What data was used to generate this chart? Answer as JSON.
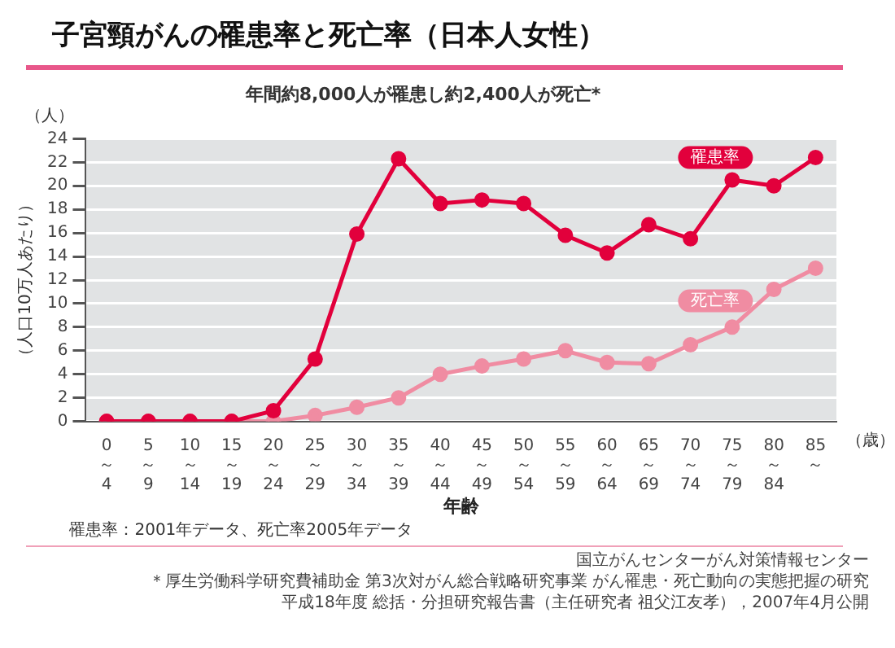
{
  "chart_data": {
    "type": "line",
    "title": "子宮頸がんの罹患率と死亡率（日本人女性）",
    "subtitle": "年間約8,000人が罹患し約2,400人が死亡*",
    "xlabel": "年齢",
    "ylabel": "（人口10万人あたり）",
    "categories": [
      "0\n～\n4",
      "5\n～\n9",
      "10\n～\n14",
      "15\n～\n19",
      "20\n～\n24",
      "25\n～\n29",
      "30\n～\n34",
      "35\n～\n39",
      "40\n～\n44",
      "45\n～\n49",
      "50\n～\n54",
      "55\n～\n59",
      "60\n～\n64",
      "65\n～\n69",
      "70\n～\n74",
      "75\n～\n79",
      "80\n～\n84",
      "85\n～"
    ],
    "series": [
      {
        "name": "罹患率",
        "color": "#e2003c",
        "values": [
          0,
          0,
          0,
          0,
          0.9,
          5.3,
          15.9,
          22.3,
          18.5,
          18.8,
          18.5,
          15.8,
          14.3,
          16.7,
          15.5,
          20.5,
          20.0,
          22.4
        ]
      },
      {
        "name": "死亡率",
        "color": "#f08ca2",
        "values": [
          0,
          0,
          0,
          0,
          0,
          0.5,
          1.2,
          2.0,
          4.0,
          4.7,
          5.3,
          6.0,
          5.0,
          4.9,
          6.5,
          8.0,
          11.2,
          13.0
        ]
      }
    ],
    "ylim": [
      0,
      24
    ],
    "yticks": [
      0,
      2,
      4,
      6,
      8,
      10,
      12,
      14,
      16,
      18,
      20,
      22,
      24
    ],
    "grid": "y",
    "legend": false,
    "marker": "circle",
    "line_style": "solid",
    "annotations": [
      "（人）",
      "（歳）",
      "罹患率：2001年データ、死亡率2005年データ",
      "国立がんセンターがん対策情報センター",
      "＊厚生労働科学研究費補助金 第3次対がん総合戦略研究事業 がん罹患・死亡動向の実態把握の研究",
      "平成18年度 総括・分担研究報告書（主任研究者 祖父江友孝），2007年4月公開"
    ]
  }
}
